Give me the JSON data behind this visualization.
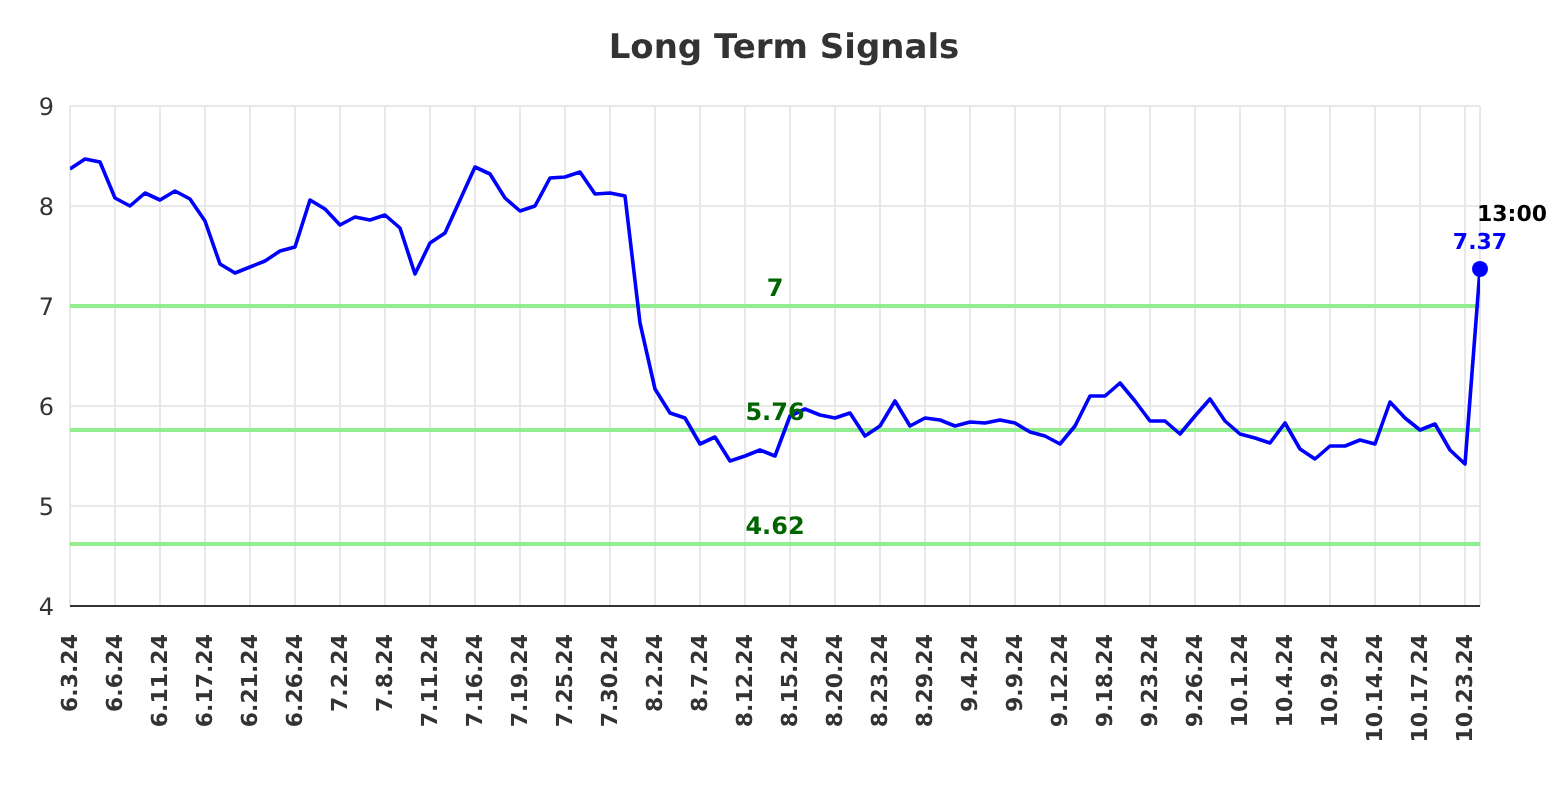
{
  "chart_data": {
    "type": "line",
    "title": "Long Term Signals",
    "categories": [
      "6.3.24",
      null,
      null,
      "6.6.24",
      null,
      null,
      "6.11.24",
      null,
      null,
      "6.17.24",
      null,
      null,
      "6.21.24",
      null,
      null,
      "6.26.24",
      null,
      null,
      "7.2.24",
      null,
      null,
      "7.8.24",
      null,
      null,
      "7.11.24",
      null,
      null,
      "7.16.24",
      null,
      null,
      "7.19.24",
      null,
      null,
      "7.25.24",
      null,
      null,
      "7.30.24",
      null,
      null,
      "8.2.24",
      null,
      null,
      "8.7.24",
      null,
      null,
      "8.12.24",
      null,
      null,
      "8.15.24",
      null,
      null,
      "8.20.24",
      null,
      null,
      "8.23.24",
      null,
      null,
      "8.29.24",
      null,
      null,
      "9.4.24",
      null,
      null,
      "9.9.24",
      null,
      null,
      "9.12.24",
      null,
      null,
      "9.18.24",
      null,
      null,
      "9.23.24",
      null,
      null,
      "9.26.24",
      null,
      null,
      "10.1.24",
      null,
      null,
      "10.4.24",
      null,
      null,
      "10.9.24",
      null,
      null,
      "10.14.24",
      null,
      null,
      "10.17.24",
      null,
      null,
      "10.23.24",
      null
    ],
    "series": [
      {
        "color": "#0000ff",
        "values": [
          8.37,
          8.47,
          8.44,
          8.08,
          8.0,
          8.13,
          8.06,
          8.15,
          8.07,
          7.85,
          7.42,
          7.33,
          7.39,
          7.45,
          7.55,
          7.59,
          8.06,
          7.97,
          7.81,
          7.89,
          7.86,
          7.91,
          7.78,
          7.32,
          7.63,
          7.73,
          8.06,
          8.39,
          8.32,
          8.08,
          7.95,
          8.0,
          8.28,
          8.29,
          8.34,
          8.12,
          8.13,
          8.1,
          6.83,
          6.17,
          5.93,
          5.88,
          5.62,
          5.69,
          5.45,
          5.5,
          5.56,
          5.5,
          5.9,
          5.97,
          5.91,
          5.88,
          5.93,
          5.7,
          5.8,
          6.05,
          5.8,
          5.88,
          5.86,
          5.8,
          5.84,
          5.83,
          5.86,
          5.83,
          5.74,
          5.7,
          5.62,
          5.8,
          6.1,
          6.1,
          6.23,
          6.05,
          5.85,
          5.85,
          5.72,
          5.9,
          6.07,
          5.85,
          5.72,
          5.68,
          5.63,
          5.83,
          5.57,
          5.47,
          5.6,
          5.6,
          5.66,
          5.62,
          6.04,
          5.88,
          5.76,
          5.82,
          5.56,
          5.42,
          7.37
        ],
        "value_labels": [
          null,
          null,
          null,
          null,
          null,
          null,
          null,
          null,
          null,
          null,
          null,
          null,
          null,
          null,
          null,
          null,
          null,
          null,
          null,
          null,
          null,
          null,
          null,
          null,
          null,
          null,
          null,
          null,
          null,
          null,
          null,
          null,
          null,
          null,
          null,
          null,
          null,
          null,
          null,
          null,
          null,
          null,
          null,
          null,
          null,
          null,
          null,
          null,
          null,
          null,
          null,
          null,
          null,
          null,
          null,
          null,
          null,
          null,
          null,
          null,
          null,
          null,
          null,
          null,
          null,
          null,
          null,
          null,
          null,
          null,
          null,
          null,
          null,
          null,
          null,
          null,
          null,
          null,
          null,
          null,
          null,
          null,
          null,
          null,
          null,
          null,
          null,
          null,
          null,
          null,
          null,
          null,
          null,
          null,
          "7.37"
        ]
      }
    ],
    "ylim": [
      4,
      9
    ],
    "yticks": [
      4,
      5,
      6,
      7,
      8,
      9
    ],
    "grid": true,
    "marker": "none",
    "line_style": "solid",
    "ref_lines": [
      {
        "axis": "y",
        "value": 7,
        "label": "7",
        "color": "#90ee90"
      },
      {
        "axis": "y",
        "value": 5.76,
        "label": "5.76",
        "color": "#90ee90"
      },
      {
        "axis": "y",
        "value": 4.62,
        "label": "4.62",
        "color": "#90ee90"
      }
    ],
    "annotations": [
      "13:00"
    ]
  }
}
